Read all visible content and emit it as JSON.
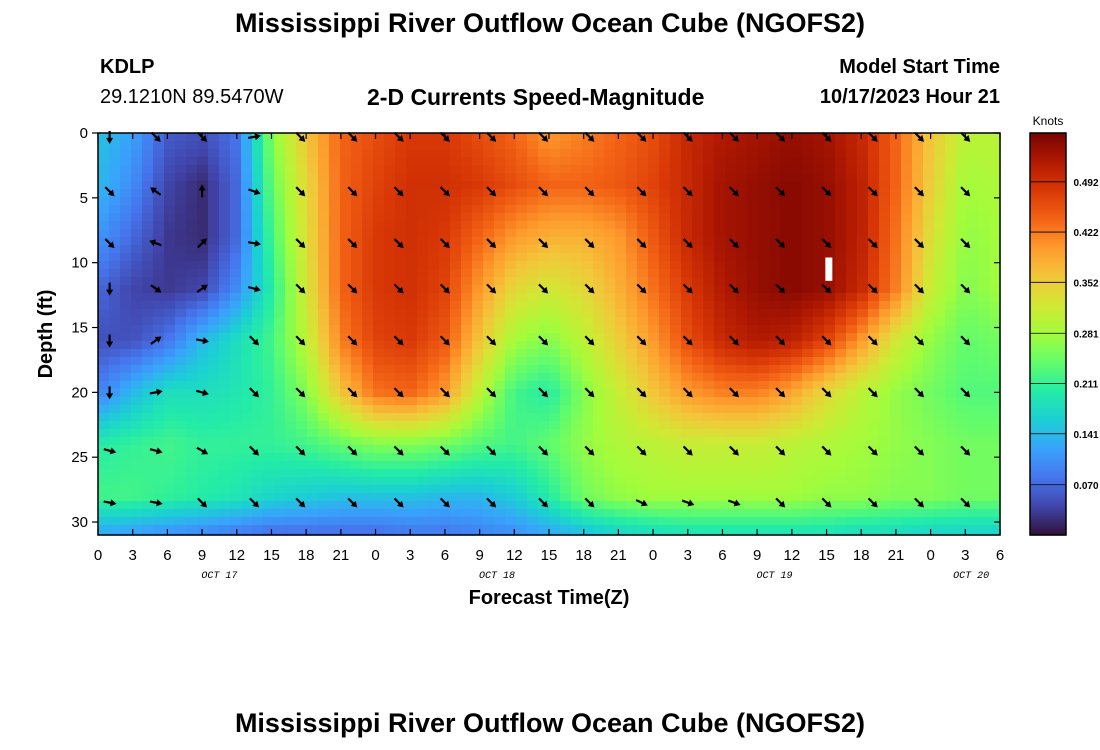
{
  "header": {
    "title": "Mississippi River Outflow Ocean Cube (NGOFS2)",
    "station": "KDLP",
    "coordinates": "29.1210N  89.5470W",
    "subtitle": "2-D Currents Speed-Magnitude",
    "model_start_label": "Model Start Time",
    "model_start_value": "10/17/2023 Hour 21"
  },
  "footer": {
    "title": "Mississippi River Outflow Ocean Cube (NGOFS2)"
  },
  "chart_data": {
    "type": "heatmap",
    "xlabel": "Forecast Time(Z)",
    "ylabel": "Depth (ft)",
    "x_range_hours": [
      0,
      78
    ],
    "y_range_ft": [
      0,
      31
    ],
    "x_tick_labels": [
      "0",
      "3",
      "6",
      "9",
      "12",
      "15",
      "18",
      "21",
      "0",
      "3",
      "6",
      "9",
      "12",
      "15",
      "18",
      "21",
      "0",
      "3",
      "6",
      "9",
      "12",
      "15",
      "18",
      "21",
      "0",
      "3",
      "6"
    ],
    "y_ticks": [
      0,
      5,
      10,
      15,
      20,
      25,
      30
    ],
    "date_labels": [
      {
        "label": "OCT 17",
        "hour": 10.5
      },
      {
        "label": "OCT 18",
        "hour": 34.5
      },
      {
        "label": "OCT 19",
        "hour": 58.5
      },
      {
        "label": "OCT 20",
        "hour": 75.5
      }
    ],
    "colorbar": {
      "label": "Knots",
      "ticks": [
        0.07,
        0.141,
        0.211,
        0.281,
        0.352,
        0.422,
        0.492
      ],
      "range": [
        0.0,
        0.56
      ],
      "colors": [
        "#30123b",
        "#4145ab",
        "#4675ed",
        "#39a2fc",
        "#1bcfd4",
        "#24eca6",
        "#61fc6c",
        "#a4fc3b",
        "#d1e834",
        "#f3c63a",
        "#fe9b2d",
        "#f36315",
        "#d93806",
        "#b11901",
        "#7a0403"
      ]
    },
    "speed_grid": {
      "x_hours": [
        0,
        3,
        6,
        9,
        12,
        15,
        18,
        21,
        24,
        27,
        30,
        33,
        36,
        39,
        42,
        45,
        48,
        51,
        54,
        57,
        60,
        63,
        66,
        69,
        72,
        75,
        78
      ],
      "depth_ft": [
        0,
        4,
        8,
        12,
        16,
        20,
        24,
        28,
        31
      ],
      "values": [
        [
          0.15,
          0.12,
          0.06,
          0.05,
          0.08,
          0.26,
          0.36,
          0.44,
          0.46,
          0.48,
          0.48,
          0.46,
          0.44,
          0.4,
          0.42,
          0.44,
          0.46,
          0.5,
          0.52,
          0.53,
          0.54,
          0.53,
          0.5,
          0.44,
          0.36,
          0.3,
          0.3
        ],
        [
          0.14,
          0.1,
          0.04,
          0.02,
          0.07,
          0.24,
          0.34,
          0.44,
          0.47,
          0.49,
          0.49,
          0.48,
          0.46,
          0.44,
          0.44,
          0.45,
          0.47,
          0.5,
          0.53,
          0.54,
          0.55,
          0.54,
          0.51,
          0.44,
          0.35,
          0.28,
          0.29
        ],
        [
          0.11,
          0.07,
          0.03,
          0.02,
          0.07,
          0.22,
          0.33,
          0.44,
          0.48,
          0.49,
          0.48,
          0.44,
          0.4,
          0.38,
          0.38,
          0.4,
          0.45,
          0.5,
          0.53,
          0.54,
          0.55,
          0.54,
          0.51,
          0.43,
          0.33,
          0.27,
          0.28
        ],
        [
          0.07,
          0.04,
          0.03,
          0.04,
          0.1,
          0.2,
          0.32,
          0.44,
          0.48,
          0.49,
          0.47,
          0.4,
          0.34,
          0.32,
          0.34,
          0.38,
          0.43,
          0.48,
          0.52,
          0.54,
          0.55,
          0.54,
          0.5,
          0.42,
          0.31,
          0.26,
          0.28
        ],
        [
          0.05,
          0.05,
          0.08,
          0.14,
          0.18,
          0.22,
          0.3,
          0.42,
          0.47,
          0.48,
          0.45,
          0.36,
          0.28,
          0.26,
          0.3,
          0.35,
          0.4,
          0.46,
          0.5,
          0.52,
          0.51,
          0.47,
          0.4,
          0.32,
          0.27,
          0.24,
          0.25
        ],
        [
          0.09,
          0.14,
          0.18,
          0.18,
          0.19,
          0.21,
          0.26,
          0.36,
          0.43,
          0.44,
          0.4,
          0.3,
          0.22,
          0.2,
          0.26,
          0.31,
          0.36,
          0.4,
          0.42,
          0.42,
          0.39,
          0.34,
          0.3,
          0.27,
          0.25,
          0.23,
          0.23
        ],
        [
          0.2,
          0.21,
          0.22,
          0.21,
          0.21,
          0.21,
          0.22,
          0.24,
          0.26,
          0.26,
          0.25,
          0.23,
          0.22,
          0.24,
          0.27,
          0.29,
          0.3,
          0.31,
          0.31,
          0.31,
          0.3,
          0.29,
          0.28,
          0.27,
          0.26,
          0.25,
          0.25
        ],
        [
          0.22,
          0.22,
          0.21,
          0.2,
          0.19,
          0.17,
          0.16,
          0.15,
          0.15,
          0.15,
          0.14,
          0.14,
          0.16,
          0.2,
          0.25,
          0.27,
          0.28,
          0.28,
          0.28,
          0.28,
          0.28,
          0.27,
          0.27,
          0.26,
          0.26,
          0.25,
          0.25
        ],
        [
          0.12,
          0.11,
          0.1,
          0.09,
          0.08,
          0.07,
          0.07,
          0.07,
          0.07,
          0.08,
          0.08,
          0.09,
          0.1,
          0.12,
          0.14,
          0.16,
          0.17,
          0.18,
          0.18,
          0.18,
          0.18,
          0.18,
          0.17,
          0.17,
          0.16,
          0.16,
          0.16
        ]
      ]
    },
    "current_arrows": {
      "x_hours": [
        1,
        5,
        9,
        13.5,
        17.5,
        22,
        26,
        30,
        34,
        38.5,
        42.5,
        47,
        51,
        55,
        59,
        63,
        67,
        71,
        75
      ],
      "depth_ft": [
        0.3,
        4.5,
        8.5,
        12,
        16,
        20,
        24.5,
        28.5
      ],
      "angle_deg_default": 45,
      "exceptions": [
        {
          "x_index": 2,
          "depth_index": 1,
          "angle_deg": -90
        },
        {
          "x_index": 2,
          "depth_index": 2,
          "angle_deg": -45
        },
        {
          "x_index": 2,
          "depth_index": 3,
          "angle_deg": -35
        },
        {
          "x_index": 1,
          "depth_index": 1,
          "angle_deg": 215
        },
        {
          "x_index": 1,
          "depth_index": 2,
          "angle_deg": 200
        },
        {
          "x_index": 1,
          "depth_index": 3,
          "angle_deg": 35
        },
        {
          "x_index": 1,
          "depth_index": 4,
          "angle_deg": -35
        },
        {
          "x_index": 0,
          "depth_index": 0,
          "angle_deg": 90
        },
        {
          "x_index": 0,
          "depth_index": 3,
          "angle_deg": 90
        },
        {
          "x_index": 0,
          "depth_index": 4,
          "angle_deg": 90
        },
        {
          "x_index": 0,
          "depth_index": 5,
          "angle_deg": 90
        },
        {
          "x_index": 3,
          "depth_index": 0,
          "angle_deg": -10
        },
        {
          "x_index": 3,
          "depth_index": 1,
          "angle_deg": 20
        },
        {
          "x_index": 3,
          "depth_index": 2,
          "angle_deg": 10
        },
        {
          "x_index": 3,
          "depth_index": 3,
          "angle_deg": 15
        },
        {
          "x_index": 2,
          "depth_index": 4,
          "angle_deg": 10
        },
        {
          "x_index": 1,
          "depth_index": 5,
          "angle_deg": -10
        },
        {
          "x_index": 2,
          "depth_index": 5,
          "angle_deg": 15
        },
        {
          "x_index": 0,
          "depth_index": 6,
          "angle_deg": 15
        },
        {
          "x_index": 1,
          "depth_index": 6,
          "angle_deg": 15
        },
        {
          "x_index": 2,
          "depth_index": 6,
          "angle_deg": 30
        },
        {
          "x_index": 0,
          "depth_index": 7,
          "angle_deg": 10
        },
        {
          "x_index": 1,
          "depth_index": 7,
          "angle_deg": 10
        },
        {
          "x_index": 11,
          "depth_index": 7,
          "angle_deg": 25
        },
        {
          "x_index": 12,
          "depth_index": 7,
          "angle_deg": 20
        },
        {
          "x_index": 13,
          "depth_index": 7,
          "angle_deg": 20
        }
      ]
    },
    "marker": {
      "hour": 63.2,
      "depth_ft_top": 9.6,
      "depth_ft_bottom": 11.4
    }
  }
}
